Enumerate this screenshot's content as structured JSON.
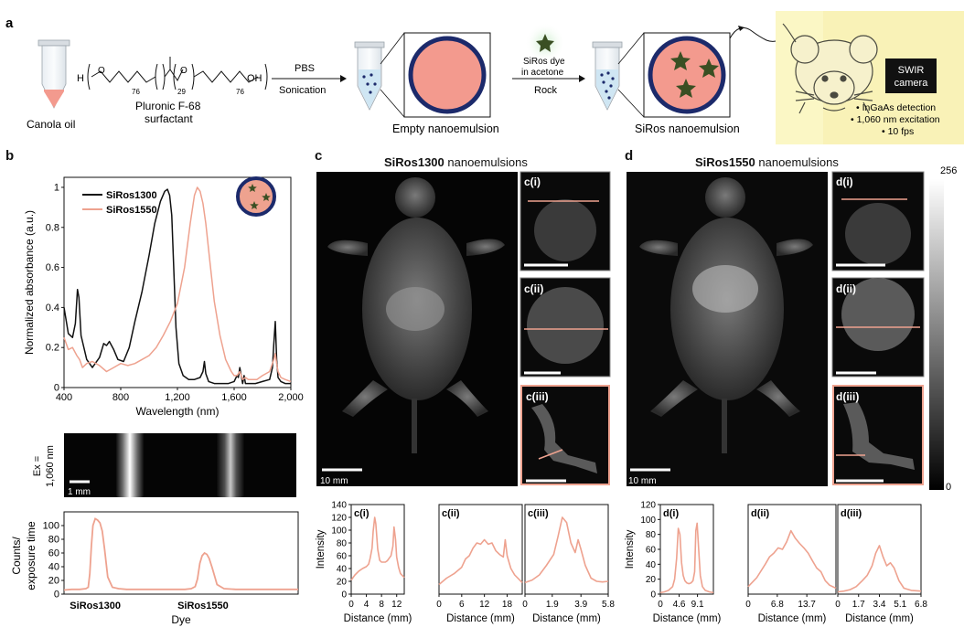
{
  "colors": {
    "salmon": "#eea28f",
    "navy": "#1c2a6b",
    "star": "#3a4f23",
    "ink": "#111111",
    "yellow": "#fbf7c5",
    "mouse_fill": "#f6f1cc"
  },
  "panel_a": {
    "letter": "a",
    "canola_label": "Canola oil",
    "formula": {
      "h": "H",
      "o": "O",
      "oh": "OH",
      "n1": "76",
      "n2": "29",
      "n3": "76"
    },
    "surfactant_label": [
      "Pluronic F-68",
      "surfactant"
    ],
    "arrow1_top": "PBS",
    "arrow1_bottom": "Sonication",
    "empty_label": "Empty nanoemulsion",
    "arrow2_top": [
      "SiRos dye",
      "in acetone"
    ],
    "arrow2_bottom": "Rock",
    "siros_label": "SiRos nanoemulsion",
    "camera_label": [
      "SWIR",
      "camera"
    ],
    "bullets": [
      "• InGaAs detection",
      "• 1,060 nm excitation",
      "• 10 fps"
    ]
  },
  "panel_b": {
    "letter": "b",
    "ex_label": [
      "Ex =",
      "1,060 nm"
    ],
    "scalebar_label": "1 mm",
    "bar_chart_xlabel": "Dye",
    "bar_chart_ylabel": [
      "Counts/",
      "exposure time"
    ]
  },
  "panel_c": {
    "letter": "c",
    "title_bold": "SiRos1300",
    "title_rest": " nanoemulsions",
    "scalebar": "10 mm",
    "insets": [
      "c(i)",
      "c(ii)",
      "c(iii)"
    ]
  },
  "panel_d": {
    "letter": "d",
    "title_bold": "SiRos1550",
    "title_rest": " nanoemulsions",
    "scalebar": "10 mm",
    "insets": [
      "d(i)",
      "d(ii)",
      "d(iii)"
    ]
  },
  "colorbar": {
    "max": "256",
    "min": "0"
  },
  "chart_data": [
    {
      "type": "line",
      "id": "absorbance",
      "xlabel": "Wavelength (nm)",
      "ylabel": "Normalized absorbance (a.u.)",
      "xlim": [
        400,
        2000
      ],
      "ylim": [
        0,
        1.05
      ],
      "xticks": [
        "400",
        "800",
        "1,200",
        "1,600",
        "2,000"
      ],
      "yticks": [
        "0",
        "0.2",
        "0.4",
        "0.6",
        "0.8",
        "1"
      ],
      "legend_position": "top-left",
      "series": [
        {
          "name": "SiRos1300",
          "color": "#111111",
          "x": [
            400,
            430,
            460,
            480,
            495,
            505,
            520,
            560,
            600,
            650,
            680,
            700,
            720,
            750,
            780,
            820,
            860,
            900,
            950,
            1000,
            1040,
            1080,
            1110,
            1130,
            1145,
            1160,
            1175,
            1190,
            1210,
            1240,
            1280,
            1320,
            1360,
            1380,
            1390,
            1400,
            1420,
            1460,
            1520,
            1560,
            1600,
            1620,
            1630,
            1640,
            1660,
            1670,
            1680,
            1700,
            1750,
            1800,
            1850,
            1870,
            1880,
            1890,
            1900,
            1910,
            1930,
            1960,
            2000
          ],
          "y": [
            0.4,
            0.27,
            0.25,
            0.32,
            0.49,
            0.45,
            0.26,
            0.14,
            0.1,
            0.15,
            0.22,
            0.21,
            0.23,
            0.19,
            0.14,
            0.13,
            0.2,
            0.33,
            0.48,
            0.66,
            0.82,
            0.93,
            0.98,
            0.99,
            0.96,
            0.86,
            0.58,
            0.3,
            0.12,
            0.06,
            0.04,
            0.04,
            0.05,
            0.08,
            0.13,
            0.07,
            0.03,
            0.02,
            0.02,
            0.02,
            0.03,
            0.06,
            0.05,
            0.1,
            0.02,
            0.06,
            0.02,
            0.02,
            0.02,
            0.03,
            0.04,
            0.1,
            0.22,
            0.33,
            0.14,
            0.05,
            0.03,
            0.02,
            0.02
          ]
        },
        {
          "name": "SiRos1550",
          "color": "#eea28f",
          "x": [
            400,
            430,
            460,
            490,
            510,
            530,
            560,
            600,
            650,
            700,
            750,
            800,
            850,
            900,
            950,
            1000,
            1050,
            1100,
            1150,
            1200,
            1250,
            1290,
            1320,
            1340,
            1360,
            1380,
            1400,
            1430,
            1460,
            1500,
            1540,
            1580,
            1600,
            1620,
            1640,
            1660,
            1680,
            1700,
            1760,
            1800,
            1850,
            1880,
            1890,
            1900,
            1910,
            1930,
            1960,
            2000
          ],
          "y": [
            0.25,
            0.19,
            0.2,
            0.16,
            0.14,
            0.1,
            0.12,
            0.13,
            0.11,
            0.08,
            0.1,
            0.12,
            0.11,
            0.12,
            0.14,
            0.16,
            0.2,
            0.26,
            0.33,
            0.42,
            0.6,
            0.82,
            0.96,
            1.0,
            0.98,
            0.92,
            0.82,
            0.62,
            0.43,
            0.26,
            0.14,
            0.08,
            0.06,
            0.06,
            0.08,
            0.04,
            0.05,
            0.04,
            0.04,
            0.06,
            0.08,
            0.14,
            0.17,
            0.12,
            0.08,
            0.05,
            0.04,
            0.03
          ]
        }
      ]
    },
    {
      "type": "line",
      "id": "counts",
      "xlabel": "Dye",
      "categories": [
        "SiRos1300",
        "SiRos1550"
      ],
      "ylim": [
        0,
        120
      ],
      "yticks": [
        "0",
        "20",
        "40",
        "60",
        "80",
        "100"
      ],
      "series": [
        {
          "name": "",
          "color": "#eea28f",
          "x": [
            0,
            10,
            20,
            28,
            31,
            33,
            35,
            37,
            40,
            43,
            46,
            49,
            52,
            56,
            62,
            70,
            80,
            90,
            100,
            110,
            120,
            140,
            155,
            163,
            168,
            171,
            174,
            177,
            180,
            183,
            186,
            190,
            196,
            205,
            220,
            240,
            260,
            280,
            300
          ],
          "y": [
            6,
            7,
            7,
            8,
            10,
            30,
            70,
            100,
            110,
            108,
            104,
            92,
            65,
            25,
            10,
            8,
            7,
            7,
            7,
            7,
            7,
            7,
            7,
            8,
            11,
            22,
            45,
            56,
            60,
            58,
            52,
            38,
            14,
            8,
            7,
            7,
            7,
            7,
            7
          ]
        }
      ]
    },
    {
      "type": "line",
      "id": "c_i",
      "title": "c(i)",
      "xlabel": "Distance (mm)",
      "ylabel": "Intensity",
      "xlim": [
        0,
        14
      ],
      "ylim": [
        0,
        140
      ],
      "xticks": [
        "0",
        "4",
        "8",
        "12"
      ],
      "yticks": [
        "0",
        "20",
        "40",
        "60",
        "80",
        "100",
        "120",
        "140"
      ],
      "series": [
        {
          "name": "",
          "x": [
            0,
            1,
            2,
            3,
            4,
            4.6,
            5,
            5.5,
            5.8,
            6.2,
            6.5,
            7,
            7.5,
            8,
            8.5,
            9,
            9.5,
            10,
            10.5,
            11,
            11.3,
            11.7,
            12,
            12.5,
            13,
            14
          ],
          "y": [
            22,
            30,
            36,
            40,
            43,
            47,
            56,
            72,
            98,
            120,
            110,
            70,
            53,
            50,
            50,
            50,
            52,
            56,
            60,
            75,
            105,
            85,
            58,
            42,
            32,
            26
          ]
        }
      ]
    },
    {
      "type": "line",
      "id": "c_ii",
      "title": "c(ii)",
      "xlabel": "Distance (mm)",
      "xlim": [
        0,
        22
      ],
      "ylim": [
        0,
        140
      ],
      "xticks": [
        "0",
        "6",
        "12",
        "18"
      ],
      "series": [
        {
          "name": "",
          "x": [
            0,
            2,
            4,
            6,
            7,
            8,
            9,
            10,
            11,
            12,
            13,
            14,
            15,
            16,
            17,
            17.5,
            18,
            18.5,
            19,
            20,
            22
          ],
          "y": [
            15,
            25,
            32,
            42,
            55,
            60,
            72,
            80,
            78,
            85,
            78,
            80,
            68,
            62,
            58,
            85,
            60,
            50,
            40,
            30,
            18
          ]
        }
      ]
    },
    {
      "type": "line",
      "id": "c_iii",
      "title": "c(iii)",
      "xlabel": "Distance (mm)",
      "xlim": [
        0,
        5.8
      ],
      "ylim": [
        0,
        140
      ],
      "xticks": [
        "0",
        "1.9",
        "3.9",
        "5.8"
      ],
      "series": [
        {
          "name": "",
          "x": [
            0,
            0.5,
            1,
            1.5,
            2,
            2.3,
            2.6,
            2.9,
            3.2,
            3.5,
            3.7,
            3.9,
            4.2,
            4.6,
            5,
            5.4,
            5.8
          ],
          "y": [
            18,
            22,
            30,
            45,
            62,
            90,
            120,
            112,
            80,
            65,
            85,
            70,
            45,
            25,
            20,
            19,
            20
          ]
        }
      ]
    },
    {
      "type": "line",
      "id": "d_i",
      "title": "d(i)",
      "xlabel": "Distance (mm)",
      "ylabel": "Intensity",
      "xlim": [
        0,
        13
      ],
      "ylim": [
        0,
        120
      ],
      "xticks": [
        "0",
        "4.6",
        "9.1"
      ],
      "yticks": [
        "0",
        "20",
        "40",
        "60",
        "80",
        "100",
        "120"
      ],
      "series": [
        {
          "name": "",
          "x": [
            0,
            1,
            2,
            3,
            3.5,
            4,
            4.4,
            4.8,
            5.2,
            5.6,
            6,
            6.5,
            7,
            7.5,
            8,
            8.4,
            8.7,
            9,
            9.4,
            9.8,
            10.3,
            11,
            12,
            13
          ],
          "y": [
            2,
            3,
            5,
            10,
            20,
            48,
            88,
            80,
            42,
            25,
            18,
            15,
            14,
            15,
            18,
            30,
            85,
            95,
            60,
            25,
            10,
            5,
            3,
            2
          ]
        }
      ]
    },
    {
      "type": "line",
      "id": "d_ii",
      "title": "d(ii)",
      "xlabel": "Distance (mm)",
      "xlim": [
        0,
        20.5
      ],
      "ylim": [
        0,
        120
      ],
      "xticks": [
        "0",
        "6.8",
        "13.7"
      ],
      "series": [
        {
          "name": "",
          "x": [
            0,
            2,
            4,
            5,
            6,
            7,
            8,
            9,
            10,
            11,
            12,
            13,
            14,
            15,
            16,
            17,
            18,
            19,
            20.5
          ],
          "y": [
            10,
            22,
            40,
            50,
            55,
            62,
            60,
            70,
            85,
            75,
            68,
            62,
            55,
            45,
            35,
            30,
            18,
            12,
            8
          ]
        }
      ]
    },
    {
      "type": "line",
      "id": "d_iii",
      "title": "d(iii)",
      "xlabel": "Distance (mm)",
      "xlim": [
        0,
        6.8
      ],
      "ylim": [
        0,
        120
      ],
      "xticks": [
        "0",
        "1.7",
        "3.4",
        "5.1",
        "6.8"
      ],
      "series": [
        {
          "name": "",
          "x": [
            0,
            0.5,
            1,
            1.5,
            2,
            2.4,
            2.8,
            3.1,
            3.4,
            3.7,
            4,
            4.3,
            4.6,
            5,
            5.4,
            6,
            6.8
          ],
          "y": [
            3,
            4,
            6,
            10,
            18,
            25,
            38,
            55,
            65,
            50,
            38,
            42,
            35,
            18,
            8,
            5,
            4
          ]
        }
      ]
    }
  ]
}
